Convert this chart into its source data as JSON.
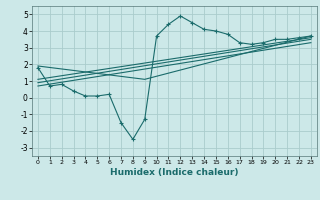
{
  "title": "",
  "xlabel": "Humidex (Indice chaleur)",
  "ylabel": "",
  "background_color": "#cce8e8",
  "grid_color": "#aacccc",
  "line_color": "#1a6b6b",
  "xlim": [
    -0.5,
    23.5
  ],
  "ylim": [
    -3.5,
    5.5
  ],
  "xticks": [
    0,
    1,
    2,
    3,
    4,
    5,
    6,
    7,
    8,
    9,
    10,
    11,
    12,
    13,
    14,
    15,
    16,
    17,
    18,
    19,
    20,
    21,
    22,
    23
  ],
  "yticks": [
    -3,
    -2,
    -1,
    0,
    1,
    2,
    3,
    4,
    5
  ],
  "main_x": [
    0,
    1,
    2,
    3,
    4,
    5,
    6,
    7,
    8,
    9,
    10,
    11,
    12,
    13,
    14,
    15,
    16,
    17,
    18,
    19,
    20,
    21,
    22,
    23
  ],
  "main_y": [
    1.8,
    0.7,
    0.8,
    0.4,
    0.1,
    0.1,
    0.2,
    -1.5,
    -2.5,
    -1.3,
    3.7,
    4.4,
    4.9,
    4.5,
    4.1,
    4.0,
    3.8,
    3.3,
    3.2,
    3.3,
    3.5,
    3.5,
    3.6,
    3.7
  ],
  "line2_x": [
    0,
    23
  ],
  "line2_y": [
    0.7,
    3.3
  ],
  "line3_x": [
    0,
    23
  ],
  "line3_y": [
    0.9,
    3.5
  ],
  "line4_x": [
    0,
    9,
    23
  ],
  "line4_y": [
    1.9,
    1.1,
    3.7
  ],
  "line5_x": [
    0,
    23
  ],
  "line5_y": [
    1.1,
    3.6
  ]
}
